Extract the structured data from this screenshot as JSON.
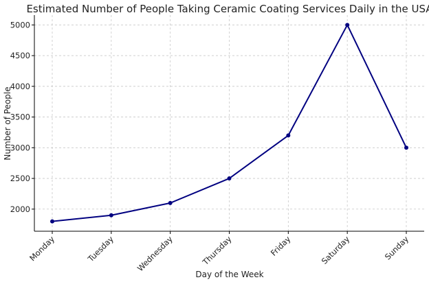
{
  "chart_data": {
    "type": "line",
    "title": "Estimated Number of People Taking Ceramic Coating Services Daily in the USA",
    "xlabel": "Day of the Week",
    "ylabel": "Number of People",
    "categories": [
      "Monday",
      "Tuesday",
      "Wednesday",
      "Thursday",
      "Friday",
      "Saturday",
      "Sunday"
    ],
    "series": [
      {
        "values": [
          1800,
          1900,
          2100,
          2500,
          3200,
          5000,
          3000
        ],
        "color": "#000080"
      }
    ],
    "ylim": [
      1640,
      5160
    ],
    "yticks": [
      2000,
      2500,
      3000,
      3500,
      4000,
      4500,
      5000
    ],
    "grid": true,
    "legend": "none"
  }
}
